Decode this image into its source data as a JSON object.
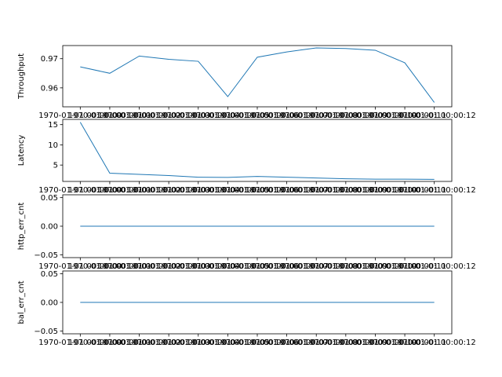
{
  "chart_data": [
    {
      "type": "line",
      "ylabel": "Throughput",
      "ylim": [
        0.9535,
        0.9745
      ],
      "yticks": [
        0.96,
        0.97
      ],
      "ytick_labels": [
        "0.96",
        "0.97"
      ],
      "x": [
        0,
        1,
        2,
        3,
        4,
        5,
        6,
        7,
        8,
        9,
        10,
        11,
        12
      ],
      "values": [
        0.9672,
        0.965,
        0.9709,
        0.9698,
        0.9691,
        0.957,
        0.9705,
        0.9723,
        0.9737,
        0.9735,
        0.9729,
        0.9686,
        0.955
      ],
      "xtick_labels": [
        "1970-01-01 00:00:00",
        "1970-01-01 00:00:01",
        "1970-01-01 00:00:02",
        "1970-01-01 00:00:03",
        "1970-01-01 00:00:04",
        "1970-01-01 00:00:05",
        "1970-01-01 00:00:06",
        "1970-01-01 00:00:07",
        "1970-01-01 00:00:08",
        "1970-01-01 00:00:09",
        "1970-01-01 00:00:10",
        "1970-01-01 00:00:11",
        "1970-01-01 00:00:12"
      ],
      "color": "#1f77b4"
    },
    {
      "type": "line",
      "ylabel": "Latency",
      "ylim": [
        0.95,
        16.3
      ],
      "yticks": [
        5,
        10,
        15
      ],
      "ytick_labels": [
        "5",
        "10",
        "15"
      ],
      "x": [
        0,
        1,
        2,
        3,
        4,
        5,
        6,
        7,
        8,
        9,
        10,
        11,
        12
      ],
      "values": [
        15.6,
        3.0,
        2.7,
        2.4,
        2.0,
        1.95,
        2.2,
        2.0,
        1.8,
        1.6,
        1.5,
        1.5,
        1.45
      ],
      "xtick_labels": [
        "1970-01-01 00:00:00",
        "1970-01-01 00:00:01",
        "1970-01-01 00:00:02",
        "1970-01-01 00:00:03",
        "1970-01-01 00:00:04",
        "1970-01-01 00:00:05",
        "1970-01-01 00:00:06",
        "1970-01-01 00:00:07",
        "1970-01-01 00:00:08",
        "1970-01-01 00:00:09",
        "1970-01-01 00:00:10",
        "1970-01-01 00:00:11",
        "1970-01-01 00:00:12"
      ],
      "color": "#1f77b4"
    },
    {
      "type": "line",
      "ylabel": "http_err_cnt",
      "ylim": [
        -0.055,
        0.055
      ],
      "yticks": [
        -0.05,
        0.0,
        0.05
      ],
      "ytick_labels": [
        "−0.05",
        "0.00",
        "0.05"
      ],
      "x": [
        0,
        1,
        2,
        3,
        4,
        5,
        6,
        7,
        8,
        9,
        10,
        11,
        12
      ],
      "values": [
        0,
        0,
        0,
        0,
        0,
        0,
        0,
        0,
        0,
        0,
        0,
        0,
        0
      ],
      "xtick_labels": [
        "1970-01-01 00:00:00",
        "1970-01-01 00:00:01",
        "1970-01-01 00:00:02",
        "1970-01-01 00:00:03",
        "1970-01-01 00:00:04",
        "1970-01-01 00:00:05",
        "1970-01-01 00:00:06",
        "1970-01-01 00:00:07",
        "1970-01-01 00:00:08",
        "1970-01-01 00:00:09",
        "1970-01-01 00:00:10",
        "1970-01-01 00:00:11",
        "1970-01-01 00:00:12"
      ],
      "color": "#1f77b4"
    },
    {
      "type": "line",
      "ylabel": "bal_err_cnt",
      "ylim": [
        -0.055,
        0.055
      ],
      "yticks": [
        -0.05,
        0.0,
        0.05
      ],
      "ytick_labels": [
        "−0.05",
        "0.00",
        "0.05"
      ],
      "x": [
        0,
        1,
        2,
        3,
        4,
        5,
        6,
        7,
        8,
        9,
        10,
        11,
        12
      ],
      "values": [
        0,
        0,
        0,
        0,
        0,
        0,
        0,
        0,
        0,
        0,
        0,
        0,
        0
      ],
      "xtick_labels": [
        "1970-01-01 00:00:00",
        "1970-01-01 00:00:01",
        "1970-01-01 00:00:02",
        "1970-01-01 00:00:03",
        "1970-01-01 00:00:04",
        "1970-01-01 00:00:05",
        "1970-01-01 00:00:06",
        "1970-01-01 00:00:07",
        "1970-01-01 00:00:08",
        "1970-01-01 00:00:09",
        "1970-01-01 00:00:10",
        "1970-01-01 00:00:11",
        "1970-01-01 00:00:12"
      ],
      "color": "#1f77b4"
    }
  ]
}
